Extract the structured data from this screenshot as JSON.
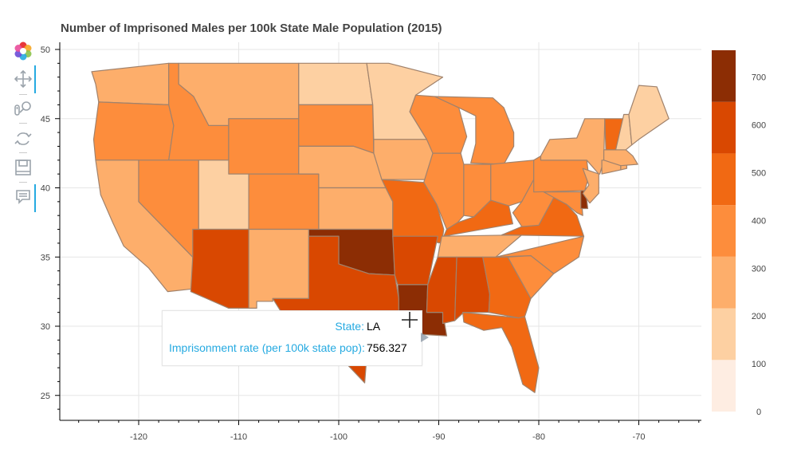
{
  "title": "Number of Imprisoned Males per 100k State Male Population (2015)",
  "toolbar": {
    "tools": [
      {
        "name": "logo",
        "icon": "bokeh-logo-icon"
      },
      {
        "name": "pan",
        "icon": "pan-icon",
        "active": true
      },
      {
        "name": "wheel-zoom",
        "icon": "wheel-zoom-icon",
        "active": false
      },
      {
        "name": "reset",
        "icon": "reset-icon",
        "active": false
      },
      {
        "name": "save",
        "icon": "save-icon",
        "active": false
      },
      {
        "name": "hover",
        "icon": "hover-icon",
        "active": true
      }
    ]
  },
  "tooltip": {
    "state_label": "State:",
    "state_value": "LA",
    "rate_label": "Imprisonment rate (per 100k state pop):",
    "rate_value": "756.327"
  },
  "chart_data": {
    "type": "choropleth",
    "title": "Number of Imprisoned Males per 100k State Male Population (2015)",
    "x_axis": {
      "ticks": [
        -120,
        -110,
        -100,
        -90,
        -80,
        -70
      ],
      "range": [
        -126,
        -64
      ]
    },
    "y_axis": {
      "ticks": [
        25,
        30,
        35,
        40,
        45,
        50
      ],
      "range": [
        23,
        51
      ]
    },
    "grid": true,
    "colorbar": {
      "location": "right",
      "ticks": [
        0,
        100,
        200,
        300,
        400,
        500,
        600,
        700
      ],
      "range": [
        0,
        756.327
      ],
      "colors": [
        "#feede2",
        "#fdd0a2",
        "#fdae6b",
        "#fd8d3c",
        "#f16913",
        "#d94801",
        "#8c2d04"
      ]
    },
    "highlighted_state": {
      "state": "LA",
      "rate": 756.327
    }
  }
}
